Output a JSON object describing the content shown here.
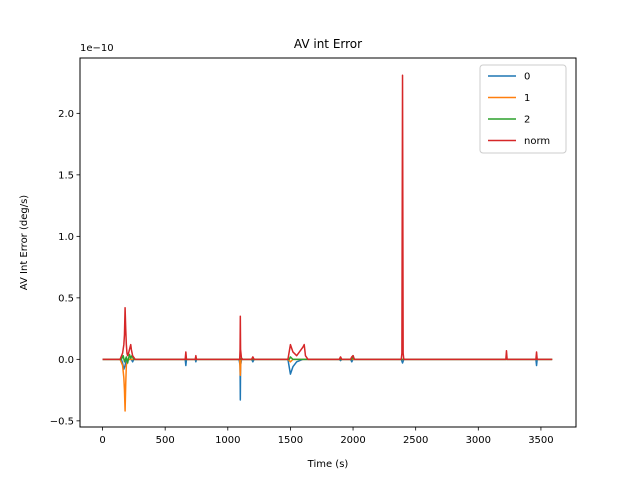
{
  "chart_data": {
    "type": "line",
    "title": "AV int Error",
    "xlabel": "Time (s)",
    "ylabel": "AV Int Error (deg/s)",
    "y_offset_text": "1e−10",
    "y_scale": 1e-10,
    "xlim": [
      -180,
      3780
    ],
    "ylim": [
      -0.55,
      2.45
    ],
    "xticks": [
      0,
      500,
      1000,
      1500,
      2000,
      2500,
      3000,
      3500
    ],
    "xtick_labels": [
      "0",
      "500",
      "1000",
      "1500",
      "2000",
      "2500",
      "3000",
      "3500"
    ],
    "yticks": [
      -0.5,
      0.0,
      0.5,
      1.0,
      1.5,
      2.0
    ],
    "ytick_labels": [
      "−0.5",
      "0.0",
      "0.5",
      "1.0",
      "1.5",
      "2.0"
    ],
    "grid": false,
    "legend_position": "top-right",
    "series": [
      {
        "name": "0",
        "color": "#1f77b4",
        "points": [
          [
            0,
            0
          ],
          [
            150,
            0
          ],
          [
            160,
            -0.03
          ],
          [
            170,
            -0.08
          ],
          [
            180,
            -0.05
          ],
          [
            190,
            0
          ],
          [
            230,
            0
          ],
          [
            240,
            -0.02
          ],
          [
            250,
            0
          ],
          [
            660,
            0
          ],
          [
            665,
            -0.05
          ],
          [
            670,
            0
          ],
          [
            740,
            0
          ],
          [
            745,
            -0.02
          ],
          [
            750,
            0
          ],
          [
            1090,
            0
          ],
          [
            1098,
            -0.05
          ],
          [
            1100,
            -0.33
          ],
          [
            1102,
            -0.05
          ],
          [
            1110,
            0
          ],
          [
            1190,
            0
          ],
          [
            1200,
            -0.02
          ],
          [
            1210,
            0
          ],
          [
            1480,
            0
          ],
          [
            1500,
            -0.12
          ],
          [
            1520,
            -0.06
          ],
          [
            1550,
            -0.02
          ],
          [
            1600,
            0
          ],
          [
            1890,
            0
          ],
          [
            1900,
            -0.01
          ],
          [
            1910,
            0
          ],
          [
            1980,
            0
          ],
          [
            1990,
            -0.02
          ],
          [
            2000,
            0
          ],
          [
            2385,
            0
          ],
          [
            2395,
            -0.03
          ],
          [
            2405,
            0
          ],
          [
            3460,
            0
          ],
          [
            3465,
            -0.05
          ],
          [
            3470,
            0
          ],
          [
            3590,
            0
          ]
        ]
      },
      {
        "name": "1",
        "color": "#ff7f0e",
        "points": [
          [
            0,
            0
          ],
          [
            140,
            0
          ],
          [
            160,
            -0.05
          ],
          [
            170,
            -0.15
          ],
          [
            175,
            -0.25
          ],
          [
            180,
            -0.42
          ],
          [
            185,
            -0.2
          ],
          [
            190,
            -0.05
          ],
          [
            200,
            0
          ],
          [
            1095,
            0
          ],
          [
            1100,
            -0.13
          ],
          [
            1105,
            0
          ],
          [
            1480,
            0
          ],
          [
            1500,
            -0.02
          ],
          [
            1520,
            0
          ],
          [
            3590,
            0
          ]
        ]
      },
      {
        "name": "2",
        "color": "#2ca02c",
        "points": [
          [
            0,
            0
          ],
          [
            150,
            0
          ],
          [
            165,
            0.03
          ],
          [
            175,
            -0.02
          ],
          [
            190,
            0.02
          ],
          [
            200,
            -0.03
          ],
          [
            215,
            0.04
          ],
          [
            225,
            0.01
          ],
          [
            235,
            0.03
          ],
          [
            250,
            0
          ],
          [
            1100,
            0
          ],
          [
            1110,
            0.01
          ],
          [
            1120,
            0
          ],
          [
            1490,
            0
          ],
          [
            1500,
            0.02
          ],
          [
            1520,
            0
          ],
          [
            1990,
            0
          ],
          [
            2000,
            0.03
          ],
          [
            2010,
            0
          ],
          [
            3590,
            0
          ]
        ]
      },
      {
        "name": "norm",
        "color": "#d62728",
        "points": [
          [
            0,
            0
          ],
          [
            140,
            0
          ],
          [
            160,
            0.05
          ],
          [
            170,
            0.12
          ],
          [
            175,
            0.2
          ],
          [
            180,
            0.42
          ],
          [
            185,
            0.25
          ],
          [
            190,
            0.12
          ],
          [
            195,
            0.05
          ],
          [
            200,
            0.03
          ],
          [
            210,
            0.06
          ],
          [
            220,
            0.1
          ],
          [
            225,
            0.12
          ],
          [
            230,
            0.08
          ],
          [
            240,
            0.03
          ],
          [
            260,
            0
          ],
          [
            660,
            0
          ],
          [
            665,
            0.06
          ],
          [
            670,
            0
          ],
          [
            740,
            0
          ],
          [
            745,
            0.03
          ],
          [
            750,
            0
          ],
          [
            1095,
            0
          ],
          [
            1098,
            0.08
          ],
          [
            1100,
            0.35
          ],
          [
            1102,
            0.08
          ],
          [
            1110,
            0
          ],
          [
            1190,
            0
          ],
          [
            1200,
            0.02
          ],
          [
            1210,
            0
          ],
          [
            1480,
            0
          ],
          [
            1500,
            0.12
          ],
          [
            1520,
            0.06
          ],
          [
            1550,
            0.03
          ],
          [
            1600,
            0.1
          ],
          [
            1610,
            0.12
          ],
          [
            1620,
            0.03
          ],
          [
            1640,
            0
          ],
          [
            1890,
            0
          ],
          [
            1900,
            0.02
          ],
          [
            1910,
            0
          ],
          [
            1980,
            0
          ],
          [
            1990,
            0.02
          ],
          [
            2000,
            0.03
          ],
          [
            2010,
            0
          ],
          [
            2385,
            0
          ],
          [
            2390,
            0.05
          ],
          [
            2395,
            2.31
          ],
          [
            2400,
            0.05
          ],
          [
            2405,
            0
          ],
          [
            3220,
            0
          ],
          [
            3225,
            0.07
          ],
          [
            3230,
            0
          ],
          [
            3460,
            0
          ],
          [
            3465,
            0.06
          ],
          [
            3470,
            0
          ],
          [
            3590,
            0
          ]
        ]
      }
    ]
  }
}
